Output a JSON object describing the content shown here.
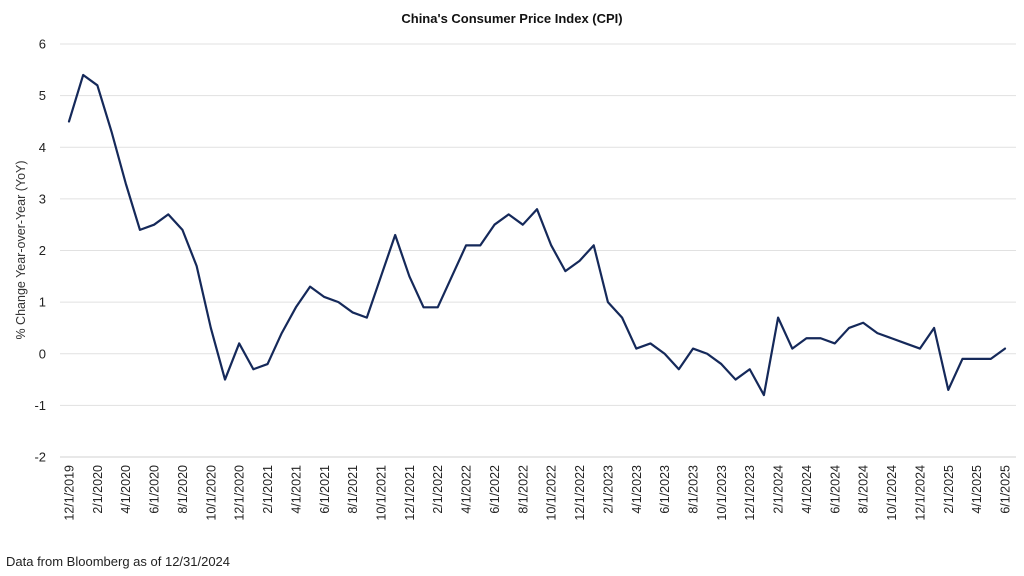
{
  "source_note": "Data from Bloomberg as of 12/31/2024",
  "chart_data": {
    "type": "line",
    "title": "China's Consumer Price Index (CPI)",
    "xlabel": "",
    "ylabel": "% Change Year-over-Year (YoY)",
    "ylim": [
      -2,
      6
    ],
    "yticks": [
      6,
      5,
      4,
      3,
      2,
      1,
      0,
      -1,
      -2
    ],
    "grid": true,
    "line_color": "#15295a",
    "x_tick_labels": [
      "12/1/2019",
      "2/1/2020",
      "4/1/2020",
      "6/1/2020",
      "8/1/2020",
      "10/1/2020",
      "12/1/2020",
      "2/1/2021",
      "4/1/2021",
      "6/1/2021",
      "8/1/2021",
      "10/1/2021",
      "12/1/2021",
      "2/1/2022",
      "4/1/2022",
      "6/1/2022",
      "8/1/2022",
      "10/1/2022",
      "12/1/2022",
      "2/1/2023",
      "4/1/2023",
      "6/1/2023",
      "8/1/2023",
      "10/1/2023",
      "12/1/2023",
      "2/1/2024",
      "4/1/2024",
      "6/1/2024",
      "8/1/2024",
      "10/1/2024",
      "12/1/2024",
      "2/1/2025",
      "4/1/2025",
      "6/1/2025"
    ],
    "series": [
      {
        "x": [
          "12/1/2019",
          "1/1/2020",
          "2/1/2020",
          "3/1/2020",
          "4/1/2020",
          "5/1/2020",
          "6/1/2020",
          "7/1/2020",
          "8/1/2020",
          "9/1/2020",
          "10/1/2020",
          "11/1/2020",
          "12/1/2020",
          "1/1/2021",
          "2/1/2021",
          "3/1/2021",
          "4/1/2021",
          "5/1/2021",
          "6/1/2021",
          "7/1/2021",
          "8/1/2021",
          "9/1/2021",
          "10/1/2021",
          "11/1/2021",
          "12/1/2021",
          "1/1/2022",
          "2/1/2022",
          "3/1/2022",
          "4/1/2022",
          "5/1/2022",
          "6/1/2022",
          "7/1/2022",
          "8/1/2022",
          "9/1/2022",
          "10/1/2022",
          "11/1/2022",
          "12/1/2022",
          "1/1/2023",
          "2/1/2023",
          "3/1/2023",
          "4/1/2023",
          "5/1/2023",
          "6/1/2023",
          "7/1/2023",
          "8/1/2023",
          "9/1/2023",
          "10/1/2023",
          "11/1/2023",
          "12/1/2023",
          "1/1/2024",
          "2/1/2024",
          "3/1/2024",
          "4/1/2024",
          "5/1/2024",
          "6/1/2024",
          "7/1/2024",
          "8/1/2024",
          "9/1/2024",
          "10/1/2024",
          "11/1/2024",
          "12/1/2024",
          "1/1/2025",
          "2/1/2025",
          "3/1/2025",
          "4/1/2025",
          "5/1/2025",
          "6/1/2025"
        ],
        "values": [
          4.5,
          5.4,
          5.2,
          4.3,
          3.3,
          2.4,
          2.5,
          2.7,
          2.4,
          1.7,
          0.5,
          -0.5,
          0.2,
          -0.3,
          -0.2,
          0.4,
          0.9,
          1.3,
          1.1,
          1.0,
          0.8,
          0.7,
          1.5,
          2.3,
          1.5,
          0.9,
          0.9,
          1.5,
          2.1,
          2.1,
          2.5,
          2.7,
          2.5,
          2.8,
          2.1,
          1.6,
          1.8,
          2.1,
          1.0,
          0.7,
          0.1,
          0.2,
          0.0,
          -0.3,
          0.1,
          0.0,
          -0.2,
          -0.5,
          -0.3,
          -0.8,
          0.7,
          0.1,
          0.3,
          0.3,
          0.2,
          0.5,
          0.6,
          0.4,
          0.3,
          0.2,
          0.1,
          0.5,
          -0.7,
          -0.1,
          -0.1,
          -0.1,
          0.1
        ]
      }
    ]
  }
}
